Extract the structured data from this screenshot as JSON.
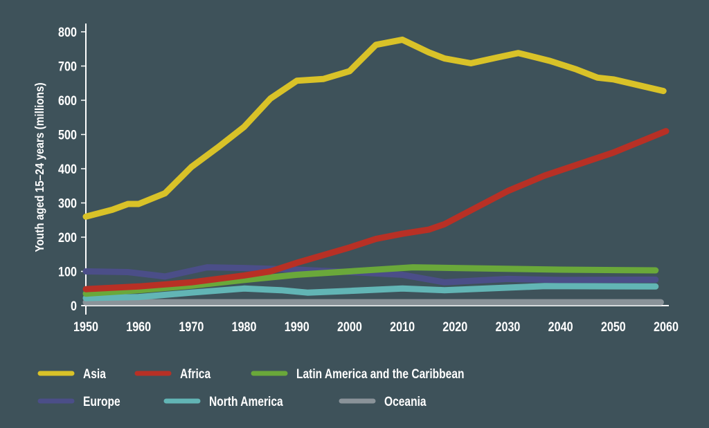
{
  "chart_data": {
    "type": "line",
    "title": "",
    "xlabel": "",
    "ylabel": "Youth aged 15–24 years (millions)",
    "xlim": [
      1950,
      2060
    ],
    "ylim": [
      0,
      800
    ],
    "x_ticks": [
      "1950",
      "1960",
      "1970",
      "1980",
      "1990",
      "2000",
      "2010",
      "2020",
      "2030",
      "2040",
      "2050",
      "2060"
    ],
    "y_ticks": [
      "0",
      "100",
      "200",
      "300",
      "400",
      "500",
      "600",
      "700",
      "800"
    ],
    "grid": false,
    "legend_position": "bottom",
    "series": [
      {
        "name": "Asia",
        "color": "#d9c228",
        "points": [
          [
            1950,
            260
          ],
          [
            1955,
            280
          ],
          [
            1958,
            297
          ],
          [
            1960,
            297
          ],
          [
            1965,
            328
          ],
          [
            1970,
            405
          ],
          [
            1975,
            462
          ],
          [
            1980,
            522
          ],
          [
            1985,
            605
          ],
          [
            1990,
            657
          ],
          [
            1995,
            662
          ],
          [
            2000,
            685
          ],
          [
            2005,
            762
          ],
          [
            2010,
            777
          ],
          [
            2015,
            740
          ],
          [
            2018,
            722
          ],
          [
            2023,
            708
          ],
          [
            2028,
            725
          ],
          [
            2032,
            738
          ],
          [
            2038,
            715
          ],
          [
            2043,
            690
          ],
          [
            2047,
            666
          ],
          [
            2050,
            661
          ],
          [
            2059.5,
            627
          ]
        ]
      },
      {
        "name": "Africa",
        "color": "#b83025",
        "points": [
          [
            1950,
            48
          ],
          [
            1960,
            56
          ],
          [
            1970,
            68
          ],
          [
            1980,
            88
          ],
          [
            1985,
            100
          ],
          [
            1990,
            125
          ],
          [
            2000,
            170
          ],
          [
            2005,
            195
          ],
          [
            2010,
            210
          ],
          [
            2015,
            222
          ],
          [
            2018,
            238
          ],
          [
            2030,
            335
          ],
          [
            2037,
            380
          ],
          [
            2050,
            447
          ],
          [
            2060,
            510
          ]
        ]
      },
      {
        "name": "Latin America and the Caribbean",
        "color": "#6aa83a",
        "points": [
          [
            1950,
            35
          ],
          [
            1960,
            45
          ],
          [
            1970,
            58
          ],
          [
            1980,
            75
          ],
          [
            1990,
            90
          ],
          [
            2000,
            100
          ],
          [
            2012,
            112
          ],
          [
            2020,
            110
          ],
          [
            2040,
            105
          ],
          [
            2058,
            103
          ]
        ]
      },
      {
        "name": "Europe",
        "color": "#4b4e88",
        "points": [
          [
            1950,
            100
          ],
          [
            1958,
            98
          ],
          [
            1965,
            85
          ],
          [
            1973,
            112
          ],
          [
            1980,
            110
          ],
          [
            1990,
            105
          ],
          [
            2000,
            98
          ],
          [
            2010,
            90
          ],
          [
            2018,
            68
          ],
          [
            2030,
            78
          ],
          [
            2040,
            75
          ],
          [
            2058,
            76
          ]
        ]
      },
      {
        "name": "North America",
        "color": "#62b5b5",
        "points": [
          [
            1950,
            22
          ],
          [
            1960,
            25
          ],
          [
            1970,
            38
          ],
          [
            1980,
            50
          ],
          [
            1987,
            45
          ],
          [
            1992,
            38
          ],
          [
            2000,
            43
          ],
          [
            2010,
            50
          ],
          [
            2018,
            45
          ],
          [
            2037,
            57
          ],
          [
            2058,
            56
          ]
        ]
      },
      {
        "name": "Oceania",
        "color": "#8a9399",
        "points": [
          [
            1950,
            10
          ],
          [
            2059,
            10
          ]
        ]
      }
    ]
  }
}
